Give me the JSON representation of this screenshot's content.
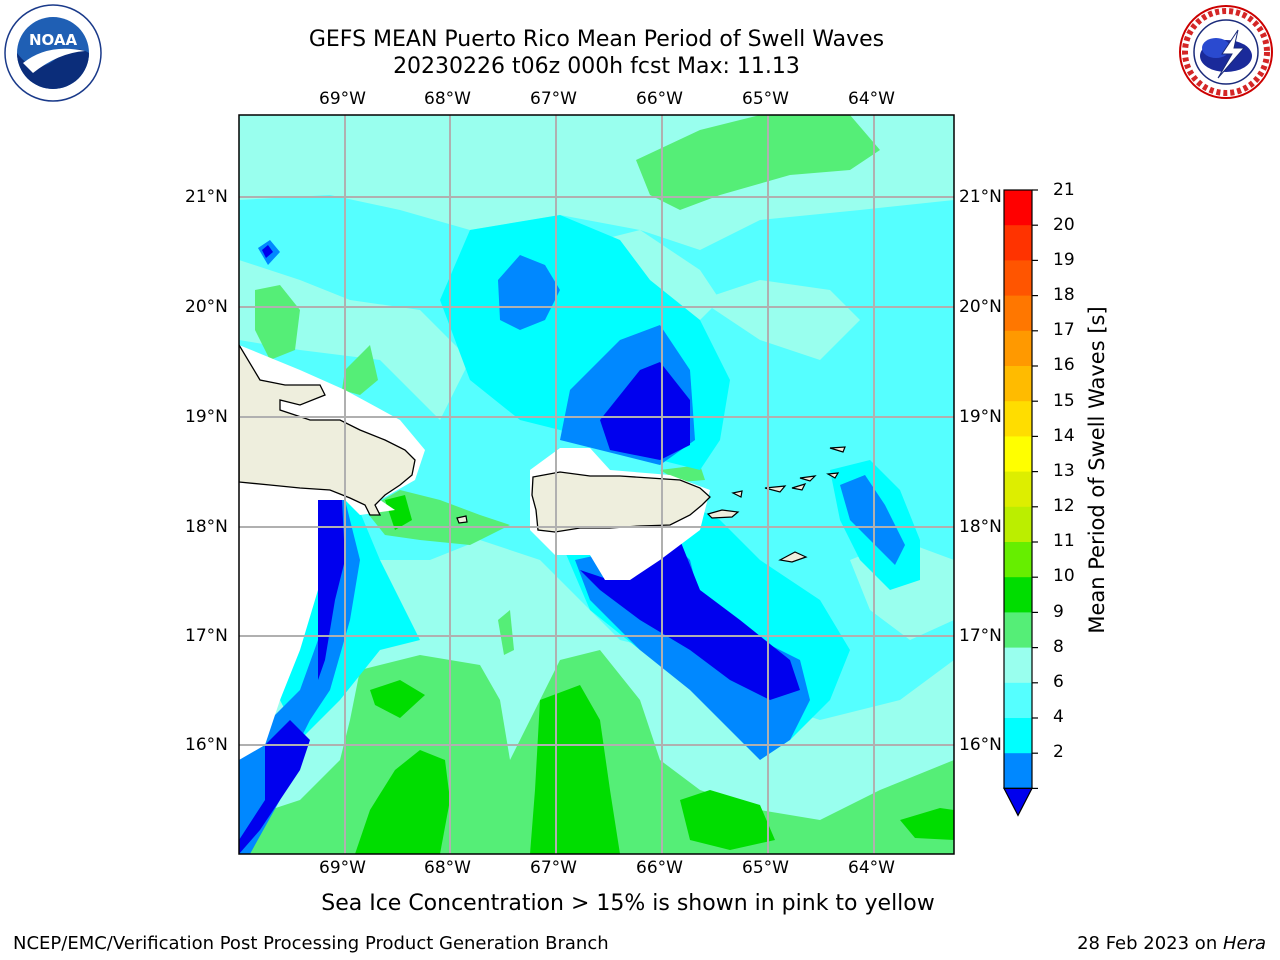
{
  "header": {
    "title_line1": "GEFS MEAN Puerto Rico Mean Period of Swell Waves",
    "title_line2": "20230226 t06z 000h fcst   Max: 11.13"
  },
  "logos": {
    "left": "NOAA",
    "left_ring_text": "NATIONAL OCEANIC AND ATMOSPHERIC ADMINISTRATION",
    "left_bottom_text": "U.S. DEPARTMENT OF COMMERCE",
    "right_ring_text": "NATIONAL WEATHER SERVICE"
  },
  "map": {
    "longitude_labels": [
      "69°W",
      "68°W",
      "67°W",
      "66°W",
      "65°W",
      "64°W"
    ],
    "latitude_labels": [
      "21°N",
      "20°N",
      "19°N",
      "18°N",
      "17°N",
      "16°N"
    ],
    "land_color": "#eeeedd",
    "grid_color": "#b0b0b0"
  },
  "colorbar": {
    "title": "Mean Period of Swell Waves [s]",
    "tick_labels": [
      "21",
      "20",
      "19",
      "18",
      "17",
      "16",
      "15",
      "14",
      "13",
      "12",
      "11",
      "10",
      "9",
      "8",
      "6",
      "4",
      "2"
    ],
    "colors": [
      "#ff0000",
      "#ff3300",
      "#ff5500",
      "#ff7700",
      "#ff9900",
      "#ffbb00",
      "#ffdd00",
      "#ffff00",
      "#ddee00",
      "#bbee00",
      "#66ee00",
      "#00dd00",
      "#55ee77",
      "#99ffee",
      "#55ffff",
      "#00ffff",
      "#0088ff",
      "#0000ee"
    ]
  },
  "subtitle": "Sea Ice Concentration > 15% is shown in pink to yellow",
  "footer": {
    "left": "NCEP/EMC/Verification Post Processing Product Generation Branch",
    "date": "28 Feb 2023 on ",
    "machine": "Hera"
  }
}
